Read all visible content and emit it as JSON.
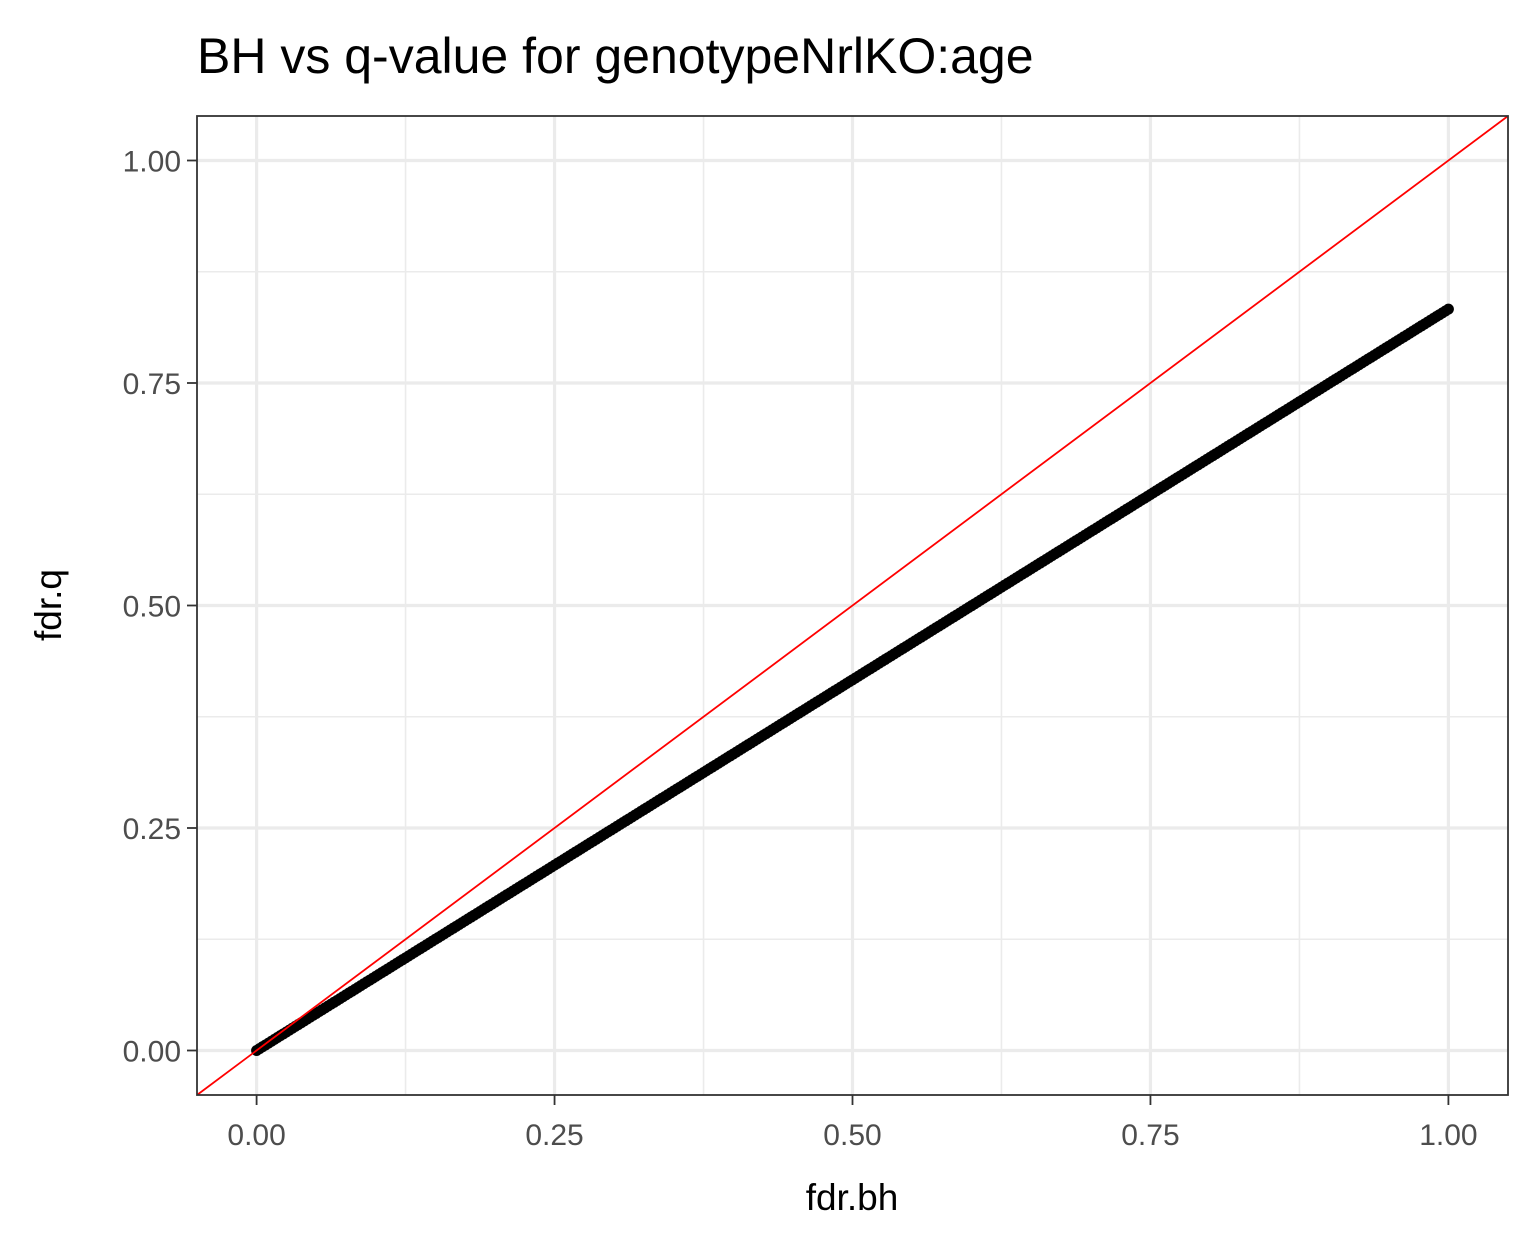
{
  "chart_data": {
    "type": "scatter",
    "title": "BH vs q-value for genotypeNrlKO:age",
    "xlabel": "fdr.bh",
    "ylabel": "fdr.q",
    "xlim": [
      -0.05,
      1.05
    ],
    "ylim": [
      -0.05,
      1.05
    ],
    "x_ticks": [
      0,
      0.25,
      0.5,
      0.75,
      1
    ],
    "x_tick_labels": [
      "0.00",
      "0.25",
      "0.50",
      "0.75",
      "1.00"
    ],
    "y_ticks": [
      0,
      0.25,
      0.5,
      0.75,
      1
    ],
    "y_tick_labels": [
      "0.00",
      "0.25",
      "0.50",
      "0.75",
      "1.00"
    ],
    "minor_breaks": [
      0.125,
      0.375,
      0.625,
      0.875
    ],
    "grid": true,
    "series": [
      {
        "x_start": 0,
        "x_end": 1,
        "slope": 0.833,
        "point_step": 0.0025,
        "color": "#000000"
      }
    ],
    "reference_line": {
      "slope": 1,
      "intercept": 0,
      "color": "#ff0000"
    }
  }
}
